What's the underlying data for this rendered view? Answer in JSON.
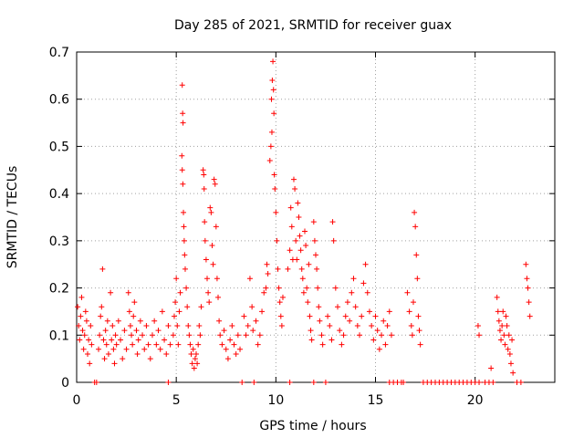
{
  "chart_data": {
    "type": "scatter",
    "title": "Day 285 of 2021, SRMTID for receiver guax",
    "xlabel": "GPS time / hours",
    "ylabel": "SRMTID / TECUs",
    "xlim": [
      0,
      24
    ],
    "ylim": [
      0,
      0.7
    ],
    "xticks": [
      0,
      5,
      10,
      15,
      20
    ],
    "xtick_labels": [
      "0",
      "5",
      "10",
      "15",
      "20"
    ],
    "yticks": [
      0,
      0.1,
      0.2,
      0.3,
      0.4,
      0.5,
      0.6,
      0.7
    ],
    "ytick_labels": [
      "0",
      "0.1",
      "0.2",
      "0.3",
      "0.4",
      "0.5",
      "0.6",
      "0.7"
    ],
    "grid": true,
    "marker": "+",
    "marker_color": "#ff0000",
    "series": [
      {
        "name": "SRMTID",
        "points": [
          [
            0.05,
            0.16
          ],
          [
            0.1,
            0.12
          ],
          [
            0.15,
            0.09
          ],
          [
            0.2,
            0.14
          ],
          [
            0.25,
            0.18
          ],
          [
            0.3,
            0.11
          ],
          [
            0.35,
            0.07
          ],
          [
            0.4,
            0.1
          ],
          [
            0.45,
            0.15
          ],
          [
            0.5,
            0.13
          ],
          [
            0.55,
            0.06
          ],
          [
            0.6,
            0.09
          ],
          [
            0.65,
            0.04
          ],
          [
            0.7,
            0.12
          ],
          [
            0.75,
            0.08
          ],
          [
            0.9,
            0.0
          ],
          [
            1.0,
            0.0
          ],
          [
            1.1,
            0.07
          ],
          [
            1.15,
            0.1
          ],
          [
            1.2,
            0.14
          ],
          [
            1.25,
            0.16
          ],
          [
            1.3,
            0.24
          ],
          [
            1.35,
            0.09
          ],
          [
            1.4,
            0.05
          ],
          [
            1.45,
            0.11
          ],
          [
            1.5,
            0.08
          ],
          [
            1.55,
            0.13
          ],
          [
            1.6,
            0.06
          ],
          [
            1.7,
            0.19
          ],
          [
            1.75,
            0.09
          ],
          [
            1.8,
            0.12
          ],
          [
            1.85,
            0.07
          ],
          [
            1.9,
            0.04
          ],
          [
            1.95,
            0.1
          ],
          [
            2.0,
            0.08
          ],
          [
            2.1,
            0.13
          ],
          [
            2.2,
            0.09
          ],
          [
            2.3,
            0.05
          ],
          [
            2.4,
            0.11
          ],
          [
            2.5,
            0.07
          ],
          [
            2.6,
            0.19
          ],
          [
            2.65,
            0.15
          ],
          [
            2.7,
            0.12
          ],
          [
            2.75,
            0.1
          ],
          [
            2.8,
            0.08
          ],
          [
            2.85,
            0.14
          ],
          [
            2.9,
            0.17
          ],
          [
            3.0,
            0.11
          ],
          [
            3.05,
            0.06
          ],
          [
            3.1,
            0.09
          ],
          [
            3.2,
            0.13
          ],
          [
            3.3,
            0.1
          ],
          [
            3.4,
            0.07
          ],
          [
            3.5,
            0.12
          ],
          [
            3.6,
            0.08
          ],
          [
            3.7,
            0.05
          ],
          [
            3.8,
            0.1
          ],
          [
            3.9,
            0.13
          ],
          [
            4.0,
            0.08
          ],
          [
            4.1,
            0.11
          ],
          [
            4.2,
            0.07
          ],
          [
            4.3,
            0.15
          ],
          [
            4.4,
            0.09
          ],
          [
            4.5,
            0.06
          ],
          [
            4.6,
            0.12
          ],
          [
            4.7,
            0.08
          ],
          [
            4.6,
            0.0
          ],
          [
            4.85,
            0.1
          ],
          [
            4.9,
            0.14
          ],
          [
            4.95,
            0.17
          ],
          [
            5.0,
            0.22
          ],
          [
            5.05,
            0.12
          ],
          [
            5.1,
            0.08
          ],
          [
            5.15,
            0.15
          ],
          [
            5.2,
            0.19
          ],
          [
            5.3,
            0.63
          ],
          [
            5.32,
            0.57
          ],
          [
            5.34,
            0.55
          ],
          [
            5.28,
            0.48
          ],
          [
            5.3,
            0.45
          ],
          [
            5.33,
            0.42
          ],
          [
            5.36,
            0.36
          ],
          [
            5.38,
            0.33
          ],
          [
            5.4,
            0.3
          ],
          [
            5.42,
            0.27
          ],
          [
            5.45,
            0.24
          ],
          [
            5.5,
            0.2
          ],
          [
            5.55,
            0.16
          ],
          [
            5.6,
            0.12
          ],
          [
            5.65,
            0.1
          ],
          [
            5.7,
            0.08
          ],
          [
            5.75,
            0.06
          ],
          [
            5.8,
            0.04
          ],
          [
            5.85,
            0.07
          ],
          [
            5.9,
            0.03
          ],
          [
            5.95,
            0.05
          ],
          [
            6.0,
            0.06
          ],
          [
            6.05,
            0.04
          ],
          [
            6.1,
            0.08
          ],
          [
            6.15,
            0.12
          ],
          [
            6.2,
            0.1
          ],
          [
            6.25,
            0.16
          ],
          [
            6.35,
            0.45
          ],
          [
            6.38,
            0.44
          ],
          [
            6.4,
            0.41
          ],
          [
            6.42,
            0.34
          ],
          [
            6.45,
            0.3
          ],
          [
            6.5,
            0.26
          ],
          [
            6.55,
            0.22
          ],
          [
            6.6,
            0.19
          ],
          [
            6.65,
            0.17
          ],
          [
            6.7,
            0.37
          ],
          [
            6.75,
            0.36
          ],
          [
            6.8,
            0.29
          ],
          [
            6.85,
            0.25
          ],
          [
            6.9,
            0.43
          ],
          [
            6.95,
            0.42
          ],
          [
            7.0,
            0.33
          ],
          [
            7.05,
            0.22
          ],
          [
            7.1,
            0.18
          ],
          [
            7.15,
            0.13
          ],
          [
            7.2,
            0.1
          ],
          [
            7.3,
            0.08
          ],
          [
            7.4,
            0.11
          ],
          [
            7.5,
            0.07
          ],
          [
            7.6,
            0.05
          ],
          [
            7.7,
            0.09
          ],
          [
            7.8,
            0.12
          ],
          [
            7.9,
            0.08
          ],
          [
            8.0,
            0.06
          ],
          [
            8.1,
            0.1
          ],
          [
            8.2,
            0.07
          ],
          [
            8.3,
            0.0
          ],
          [
            8.9,
            0.0
          ],
          [
            8.4,
            0.14
          ],
          [
            8.5,
            0.1
          ],
          [
            8.6,
            0.12
          ],
          [
            8.7,
            0.22
          ],
          [
            8.8,
            0.16
          ],
          [
            8.85,
            0.11
          ],
          [
            9.0,
            0.13
          ],
          [
            9.1,
            0.08
          ],
          [
            9.2,
            0.1
          ],
          [
            9.3,
            0.15
          ],
          [
            9.4,
            0.19
          ],
          [
            9.5,
            0.2
          ],
          [
            9.55,
            0.25
          ],
          [
            9.6,
            0.23
          ],
          [
            9.7,
            0.47
          ],
          [
            9.75,
            0.5
          ],
          [
            9.8,
            0.53
          ],
          [
            9.78,
            0.6
          ],
          [
            9.82,
            0.64
          ],
          [
            9.85,
            0.68
          ],
          [
            9.88,
            0.62
          ],
          [
            9.9,
            0.57
          ],
          [
            9.92,
            0.44
          ],
          [
            9.95,
            0.41
          ],
          [
            10.0,
            0.36
          ],
          [
            10.05,
            0.3
          ],
          [
            10.1,
            0.24
          ],
          [
            10.15,
            0.2
          ],
          [
            10.2,
            0.17
          ],
          [
            10.25,
            0.14
          ],
          [
            10.3,
            0.12
          ],
          [
            10.35,
            0.18
          ],
          [
            10.7,
            0.0
          ],
          [
            10.6,
            0.24
          ],
          [
            10.7,
            0.28
          ],
          [
            10.75,
            0.37
          ],
          [
            10.8,
            0.33
          ],
          [
            10.85,
            0.26
          ],
          [
            10.9,
            0.43
          ],
          [
            10.95,
            0.41
          ],
          [
            11.0,
            0.3
          ],
          [
            11.05,
            0.26
          ],
          [
            11.1,
            0.38
          ],
          [
            11.15,
            0.35
          ],
          [
            11.2,
            0.31
          ],
          [
            11.25,
            0.28
          ],
          [
            11.3,
            0.24
          ],
          [
            11.35,
            0.22
          ],
          [
            11.4,
            0.19
          ],
          [
            11.45,
            0.32
          ],
          [
            11.5,
            0.29
          ],
          [
            11.55,
            0.2
          ],
          [
            11.6,
            0.17
          ],
          [
            11.65,
            0.25
          ],
          [
            11.7,
            0.14
          ],
          [
            11.75,
            0.11
          ],
          [
            11.8,
            0.09
          ],
          [
            11.9,
            0.34
          ],
          [
            11.95,
            0.3
          ],
          [
            12.0,
            0.27
          ],
          [
            12.05,
            0.24
          ],
          [
            12.1,
            0.2
          ],
          [
            12.15,
            0.16
          ],
          [
            12.2,
            0.13
          ],
          [
            12.3,
            0.1
          ],
          [
            12.35,
            0.08
          ],
          [
            11.9,
            0.0
          ],
          [
            12.5,
            0.0
          ],
          [
            12.6,
            0.14
          ],
          [
            12.7,
            0.12
          ],
          [
            12.8,
            0.09
          ],
          [
            12.85,
            0.34
          ],
          [
            12.9,
            0.3
          ],
          [
            13.0,
            0.2
          ],
          [
            13.1,
            0.16
          ],
          [
            13.2,
            0.11
          ],
          [
            13.3,
            0.08
          ],
          [
            13.4,
            0.1
          ],
          [
            13.5,
            0.14
          ],
          [
            13.6,
            0.17
          ],
          [
            13.7,
            0.13
          ],
          [
            13.8,
            0.19
          ],
          [
            13.9,
            0.22
          ],
          [
            14.0,
            0.16
          ],
          [
            14.1,
            0.12
          ],
          [
            14.2,
            0.1
          ],
          [
            14.3,
            0.14
          ],
          [
            14.4,
            0.21
          ],
          [
            14.5,
            0.25
          ],
          [
            14.6,
            0.19
          ],
          [
            14.7,
            0.15
          ],
          [
            14.8,
            0.12
          ],
          [
            14.9,
            0.09
          ],
          [
            15.0,
            0.14
          ],
          [
            15.1,
            0.11
          ],
          [
            15.2,
            0.07
          ],
          [
            15.3,
            0.1
          ],
          [
            15.4,
            0.13
          ],
          [
            15.5,
            0.08
          ],
          [
            15.6,
            0.12
          ],
          [
            15.7,
            0.15
          ],
          [
            15.8,
            0.1
          ],
          [
            15.7,
            0.0
          ],
          [
            15.9,
            0.0
          ],
          [
            16.1,
            0.0
          ],
          [
            16.3,
            0.0
          ],
          [
            16.4,
            0.0
          ],
          [
            16.6,
            0.19
          ],
          [
            16.7,
            0.15
          ],
          [
            16.8,
            0.12
          ],
          [
            16.85,
            0.1
          ],
          [
            16.9,
            0.17
          ],
          [
            16.95,
            0.36
          ],
          [
            17.0,
            0.33
          ],
          [
            17.05,
            0.27
          ],
          [
            17.1,
            0.22
          ],
          [
            17.15,
            0.14
          ],
          [
            17.2,
            0.11
          ],
          [
            17.25,
            0.08
          ],
          [
            17.4,
            0.0
          ],
          [
            17.6,
            0.0
          ],
          [
            17.8,
            0.0
          ],
          [
            18.0,
            0.0
          ],
          [
            18.2,
            0.0
          ],
          [
            18.4,
            0.0
          ],
          [
            18.6,
            0.0
          ],
          [
            18.8,
            0.0
          ],
          [
            19.0,
            0.0
          ],
          [
            19.2,
            0.0
          ],
          [
            19.4,
            0.0
          ],
          [
            19.6,
            0.0
          ],
          [
            19.8,
            0.0
          ],
          [
            20.0,
            0.0
          ],
          [
            20.2,
            0.0
          ],
          [
            20.5,
            0.0
          ],
          [
            20.7,
            0.0
          ],
          [
            20.9,
            0.0
          ],
          [
            20.15,
            0.12
          ],
          [
            20.2,
            0.1
          ],
          [
            21.1,
            0.18
          ],
          [
            21.15,
            0.15
          ],
          [
            21.2,
            0.13
          ],
          [
            21.25,
            0.11
          ],
          [
            21.3,
            0.09
          ],
          [
            21.35,
            0.12
          ],
          [
            21.4,
            0.15
          ],
          [
            21.45,
            0.1
          ],
          [
            21.5,
            0.08
          ],
          [
            21.55,
            0.14
          ],
          [
            21.6,
            0.12
          ],
          [
            21.65,
            0.07
          ],
          [
            21.7,
            0.1
          ],
          [
            21.75,
            0.06
          ],
          [
            21.8,
            0.04
          ],
          [
            21.85,
            0.09
          ],
          [
            21.9,
            0.02
          ],
          [
            20.8,
            0.03
          ],
          [
            22.1,
            0.0
          ],
          [
            22.3,
            0.0
          ],
          [
            22.55,
            0.25
          ],
          [
            22.6,
            0.22
          ],
          [
            22.65,
            0.2
          ],
          [
            22.7,
            0.17
          ],
          [
            22.75,
            0.14
          ]
        ]
      }
    ]
  }
}
